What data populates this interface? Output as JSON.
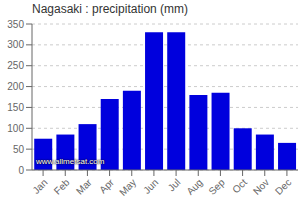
{
  "chart_data": {
    "type": "bar",
    "title": "Nagasaki : precipitation (mm)",
    "categories": [
      "Jan",
      "Feb",
      "Mar",
      "Apr",
      "May",
      "Jun",
      "Jul",
      "Aug",
      "Sep",
      "Oct",
      "Nov",
      "Dec"
    ],
    "values": [
      75,
      85,
      110,
      170,
      190,
      330,
      330,
      180,
      185,
      100,
      85,
      65
    ],
    "color": "#0000dd",
    "ylim": [
      0,
      350
    ],
    "yticks": [
      0,
      50,
      100,
      150,
      200,
      250,
      300,
      350
    ],
    "grid": true,
    "annotations": [
      "www.allmetsat.com"
    ]
  }
}
